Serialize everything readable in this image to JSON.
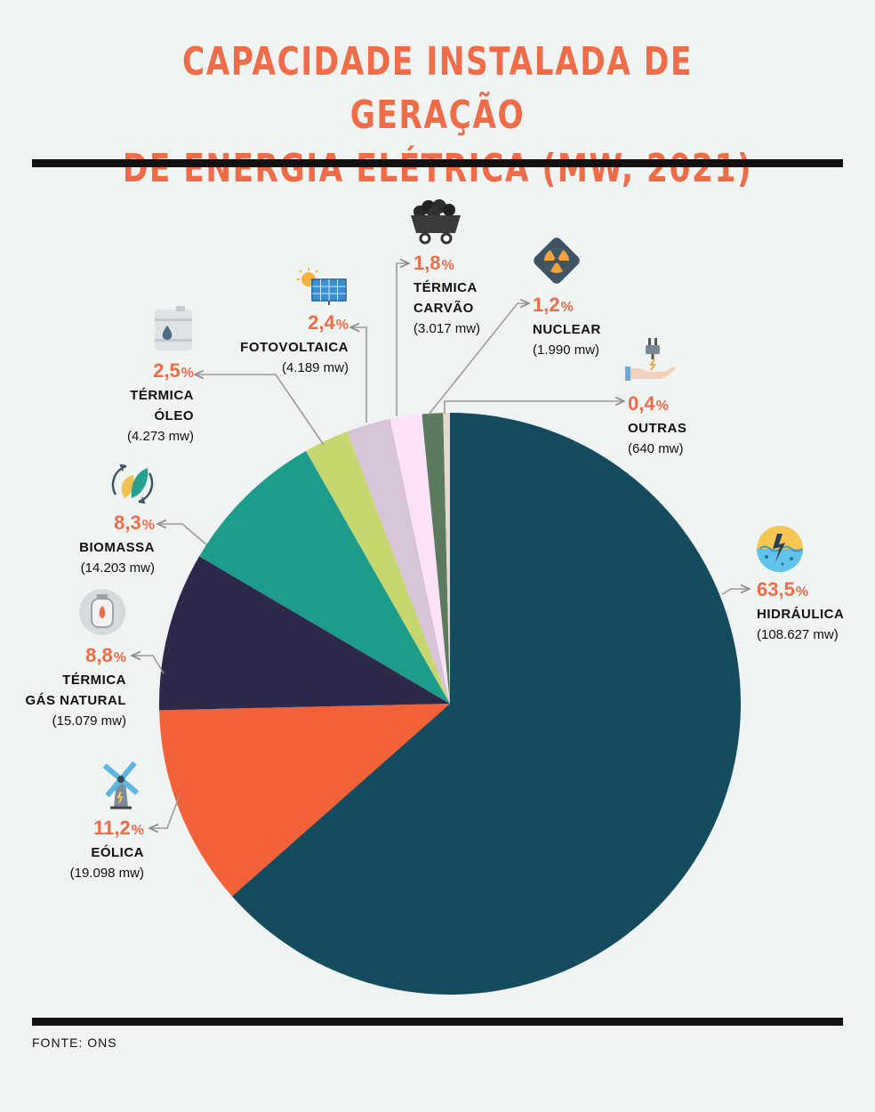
{
  "title_line1": "CAPACIDADE INSTALADA DE GERAÇÃO",
  "title_line2": "DE ENERGIA ELÉTRICA (MW, 2021)",
  "source": "FONTE: ONS",
  "colors": {
    "accent": "#ef6c49",
    "hidraulica": "#144b5f",
    "eolica": "#f26138",
    "gas": "#2d294b",
    "biomassa": "#1e9c8b",
    "oleo": "#c7d770",
    "fotovoltaica": "#d7c4d8",
    "carvao": "#fbe2f8",
    "nuclear": "#5c7b5c",
    "outras": "#e6d8ca"
  },
  "chart_data": {
    "type": "pie",
    "start_angle_deg": 0,
    "direction": "clockwise",
    "slices": [
      {
        "key": "hidraulica",
        "name": "HIDRÁULICA",
        "pct_value": 63.5,
        "pct": "63,5",
        "mw_value": 108627,
        "mw": "(108.627 mw)",
        "icon": "hydro-icon"
      },
      {
        "key": "eolica",
        "name": "EÓLICA",
        "pct_value": 11.2,
        "pct": "11,2",
        "mw_value": 19098,
        "mw": "(19.098 mw)",
        "icon": "windmill-icon"
      },
      {
        "key": "gas",
        "name1": "TÉRMICA",
        "name2": "GÁS NATURAL",
        "pct_value": 8.8,
        "pct": "8,8",
        "mw_value": 15079,
        "mw": "(15.079 mw)",
        "icon": "gas-cylinder-icon"
      },
      {
        "key": "biomassa",
        "name": "BIOMASSA",
        "pct_value": 8.3,
        "pct": "8,3",
        "mw_value": 14203,
        "mw": "(14.203 mw)",
        "icon": "biomass-leaf-icon"
      },
      {
        "key": "oleo",
        "name1": "TÉRMICA",
        "name2": "ÓLEO",
        "pct_value": 2.5,
        "pct": "2,5",
        "mw_value": 4273,
        "mw": "(4.273 mw)",
        "icon": "oil-barrel-icon"
      },
      {
        "key": "fotovoltaica",
        "name": "FOTOVOLTAICA",
        "pct_value": 2.4,
        "pct": "2,4",
        "mw_value": 4189,
        "mw": "(4.189 mw)",
        "icon": "solar-panel-icon"
      },
      {
        "key": "carvao",
        "name1": "TÉRMICA",
        "name2": "CARVÃO",
        "pct_value": 1.8,
        "pct": "1,8",
        "mw_value": 3017,
        "mw": "(3.017 mw)",
        "icon": "coal-cart-icon"
      },
      {
        "key": "nuclear",
        "name": "NUCLEAR",
        "pct_value": 1.2,
        "pct": "1,2",
        "mw_value": 1990,
        "mw": "(1.990 mw)",
        "icon": "nuclear-icon"
      },
      {
        "key": "outras",
        "name": "OUTRAS",
        "pct_value": 0.4,
        "pct": "0,4",
        "mw_value": 640,
        "mw": "(640 mw)",
        "icon": "plug-hand-icon"
      }
    ]
  }
}
